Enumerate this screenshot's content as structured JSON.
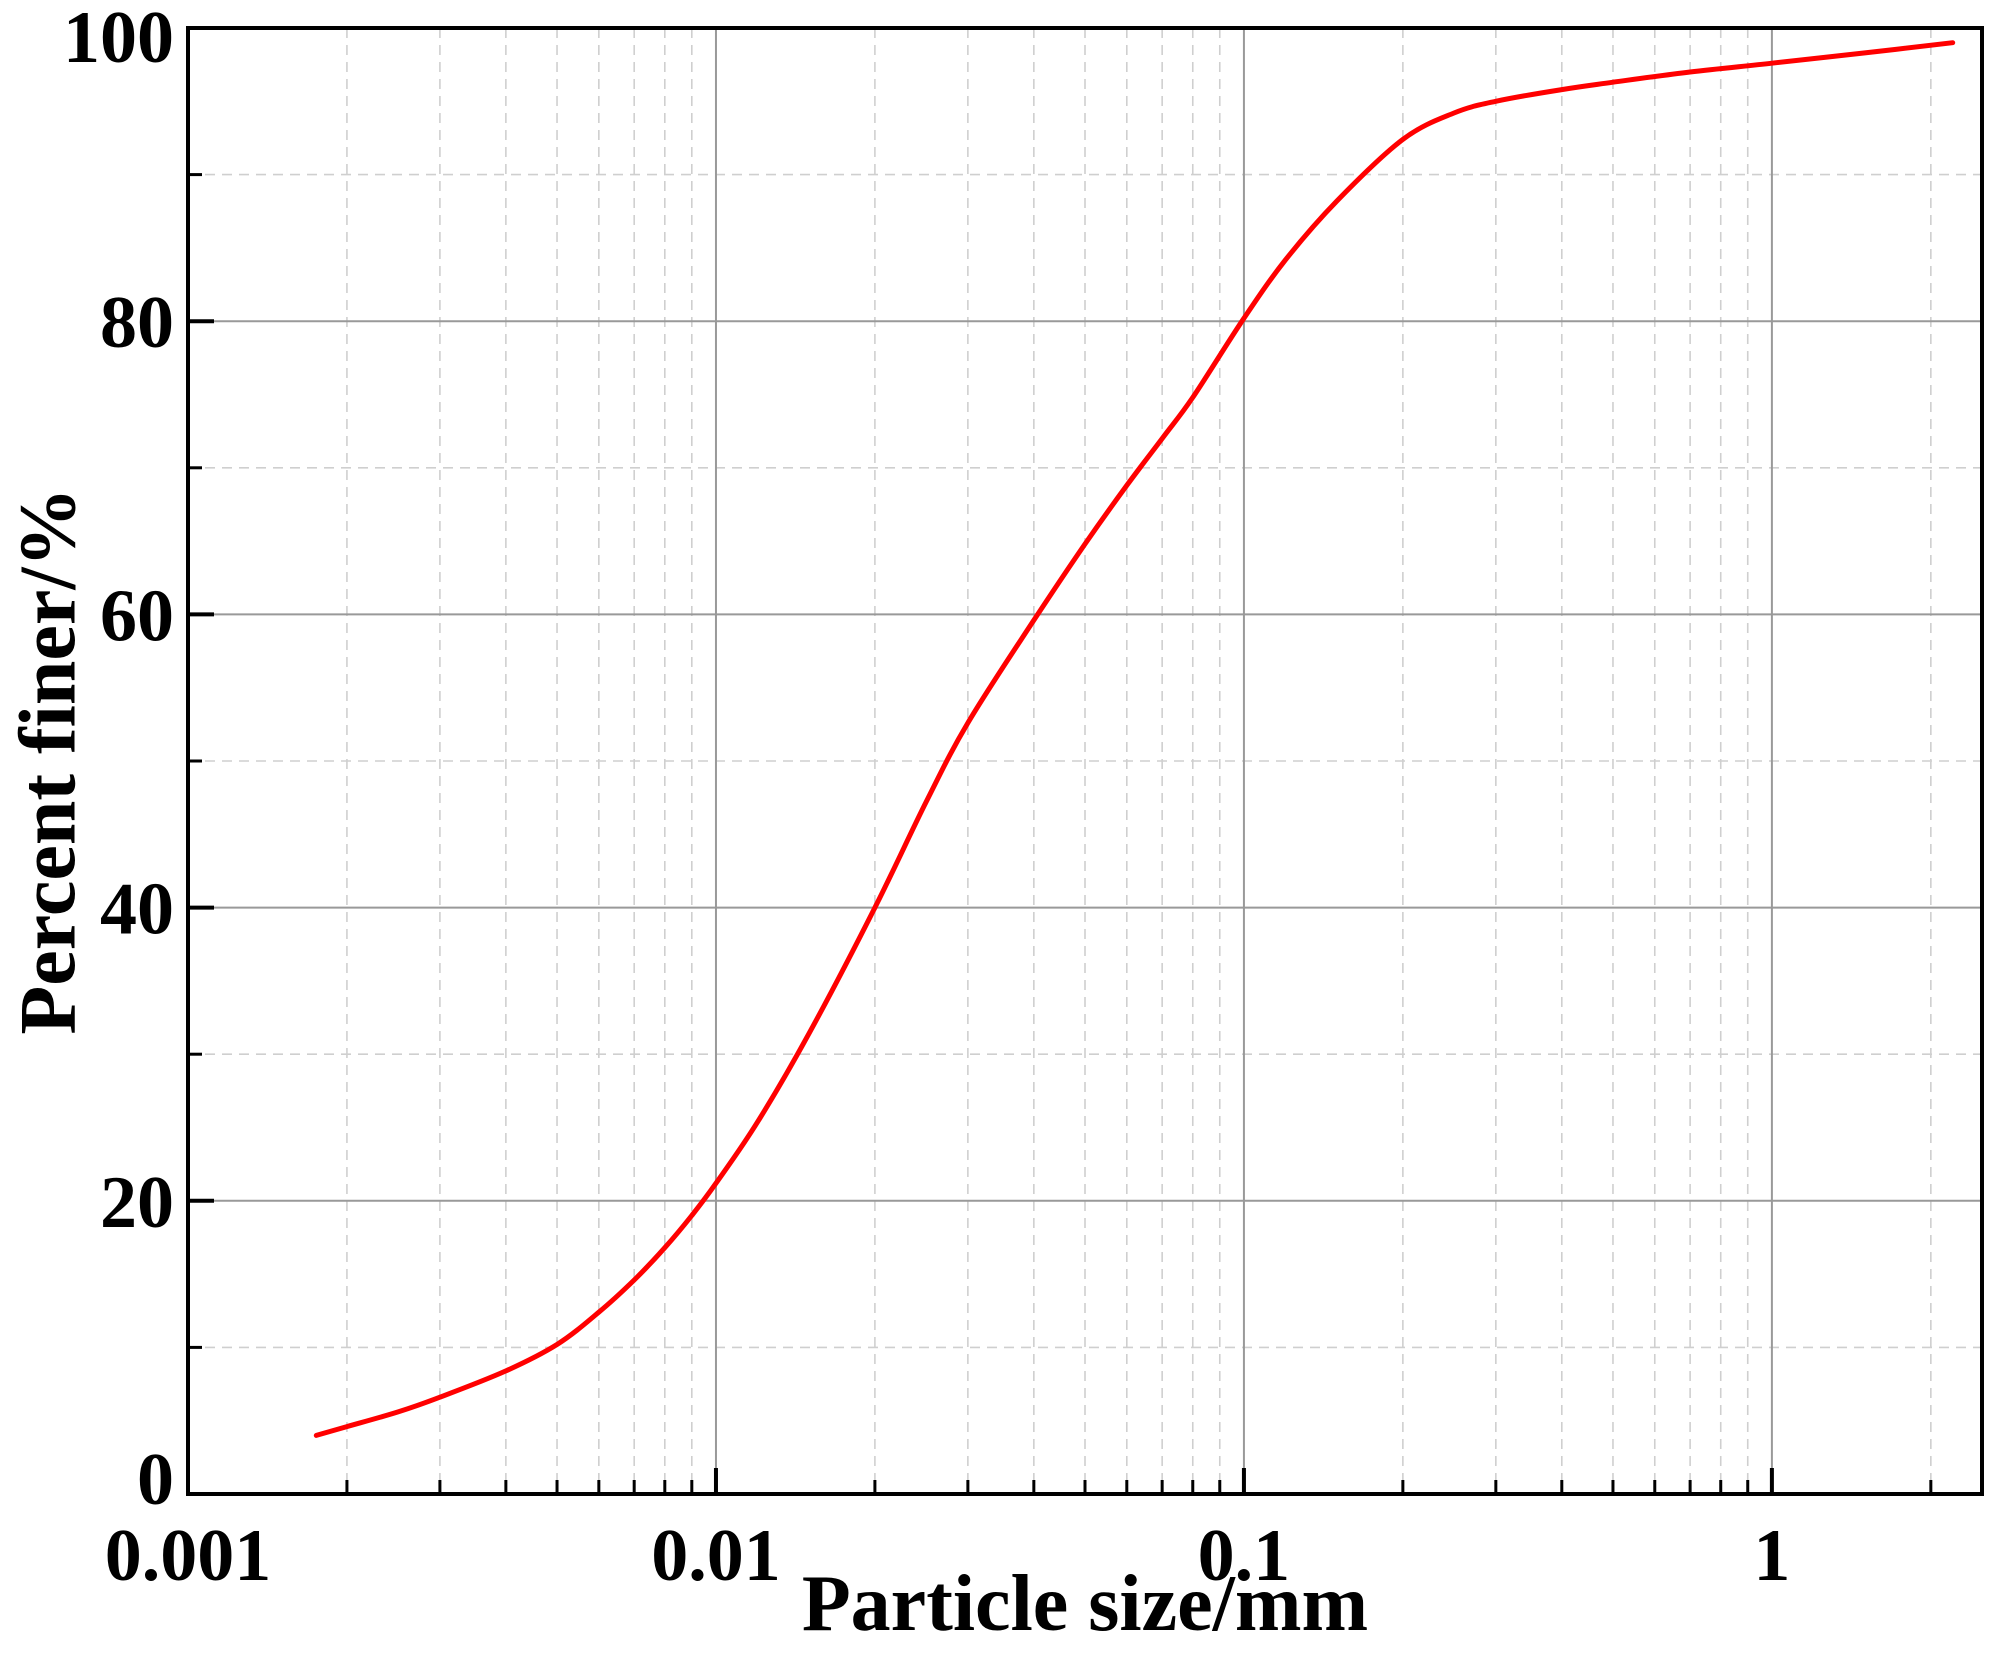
{
  "chart_data": {
    "type": "line",
    "title": "",
    "xlabel": "Particle size/mm",
    "ylabel": "Percent finer/%",
    "x_scale": "log",
    "xlim": [
      0.001,
      2.5
    ],
    "ylim": [
      0,
      100
    ],
    "x_ticks": [
      {
        "value": 0.001,
        "label": "0.001"
      },
      {
        "value": 0.01,
        "label": "0.01"
      },
      {
        "value": 0.1,
        "label": "0.1"
      },
      {
        "value": 1,
        "label": "1"
      }
    ],
    "y_ticks": [
      {
        "value": 0,
        "label": "0"
      },
      {
        "value": 20,
        "label": "20"
      },
      {
        "value": 40,
        "label": "40"
      },
      {
        "value": 60,
        "label": "60"
      },
      {
        "value": 80,
        "label": "80"
      },
      {
        "value": 100,
        "label": "100"
      }
    ],
    "grid": {
      "major": true,
      "minor": true
    },
    "series": [
      {
        "color": "#ff0000",
        "x": [
          0.00175,
          0.002,
          0.0025,
          0.003,
          0.004,
          0.005,
          0.006,
          0.007,
          0.008,
          0.009,
          0.01,
          0.012,
          0.015,
          0.02,
          0.025,
          0.03,
          0.04,
          0.05,
          0.06,
          0.07,
          0.08,
          0.1,
          0.12,
          0.15,
          0.2,
          0.25,
          0.3,
          0.4,
          0.5,
          0.7,
          1,
          1.5,
          2.2
        ],
        "y": [
          4,
          4.6,
          5.6,
          6.6,
          8.4,
          10.2,
          12.4,
          14.6,
          16.8,
          19,
          21.2,
          25.4,
          31.4,
          40,
          47.2,
          52.6,
          59.6,
          64.8,
          68.8,
          72,
          74.8,
          80.2,
          84.2,
          88.2,
          92.4,
          94.2,
          95,
          95.8,
          96.3,
          97,
          97.6,
          98.3,
          99
        ]
      }
    ]
  }
}
